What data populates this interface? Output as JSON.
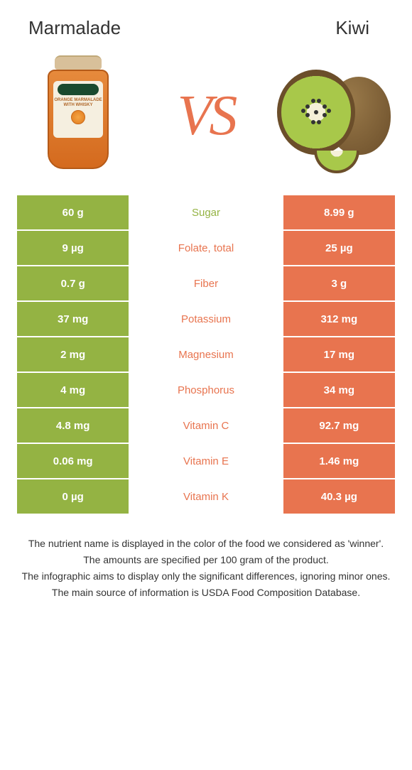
{
  "colors": {
    "left_bg": "#94b343",
    "right_bg": "#e8744f",
    "mid_text_winner_left": "#94b343",
    "mid_text_winner_right": "#e8744f",
    "vs": "#e8744f"
  },
  "header": {
    "left_title": "Marmalade",
    "right_title": "Kiwi",
    "vs_text": "VS"
  },
  "jar_label": "ORANGE\nMARMALADE\nWITH WHISKY",
  "table": {
    "type": "comparison-table",
    "rows": [
      {
        "left": "60 g",
        "mid": "Sugar",
        "right": "8.99 g",
        "winner": "left"
      },
      {
        "left": "9 µg",
        "mid": "Folate, total",
        "right": "25 µg",
        "winner": "right"
      },
      {
        "left": "0.7 g",
        "mid": "Fiber",
        "right": "3 g",
        "winner": "right"
      },
      {
        "left": "37 mg",
        "mid": "Potassium",
        "right": "312 mg",
        "winner": "right"
      },
      {
        "left": "2 mg",
        "mid": "Magnesium",
        "right": "17 mg",
        "winner": "right"
      },
      {
        "left": "4 mg",
        "mid": "Phosphorus",
        "right": "34 mg",
        "winner": "right"
      },
      {
        "left": "4.8 mg",
        "mid": "Vitamin C",
        "right": "92.7 mg",
        "winner": "right"
      },
      {
        "left": "0.06 mg",
        "mid": "Vitamin E",
        "right": "1.46 mg",
        "winner": "right"
      },
      {
        "left": "0 µg",
        "mid": "Vitamin K",
        "right": "40.3 µg",
        "winner": "right"
      }
    ]
  },
  "footnotes": [
    "The nutrient name is displayed in the color of the food we considered as 'winner'.",
    "The amounts are specified per 100 gram of the product.",
    "The infographic aims to display only the significant differences, ignoring minor ones.",
    "The main source of information is USDA Food Composition Database."
  ]
}
